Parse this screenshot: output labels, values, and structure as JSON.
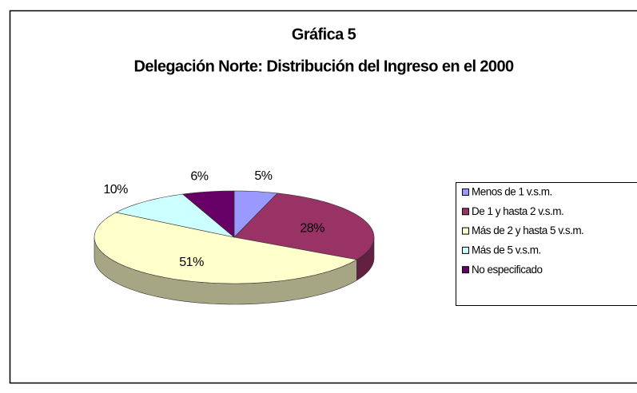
{
  "chart_data": {
    "type": "pie3d",
    "title": "Gráfica 5",
    "subtitle": "Delegación Norte: Distribución del Ingreso en el 2000",
    "categories": [
      "Menos de 1 v.s.m.",
      "De 1 y hasta 2 v.s.m.",
      "Más de 2 y hasta 5 v.s.m.",
      "Más de 5 v.s.m.",
      "No especificado"
    ],
    "values": [
      5,
      28,
      51,
      10,
      6
    ],
    "value_labels": [
      "5%",
      "28%",
      "51%",
      "10%",
      "6%"
    ],
    "colors": [
      "#9999ff",
      "#993366",
      "#ffffcc",
      "#ccffff",
      "#660066"
    ],
    "legend": "right"
  }
}
